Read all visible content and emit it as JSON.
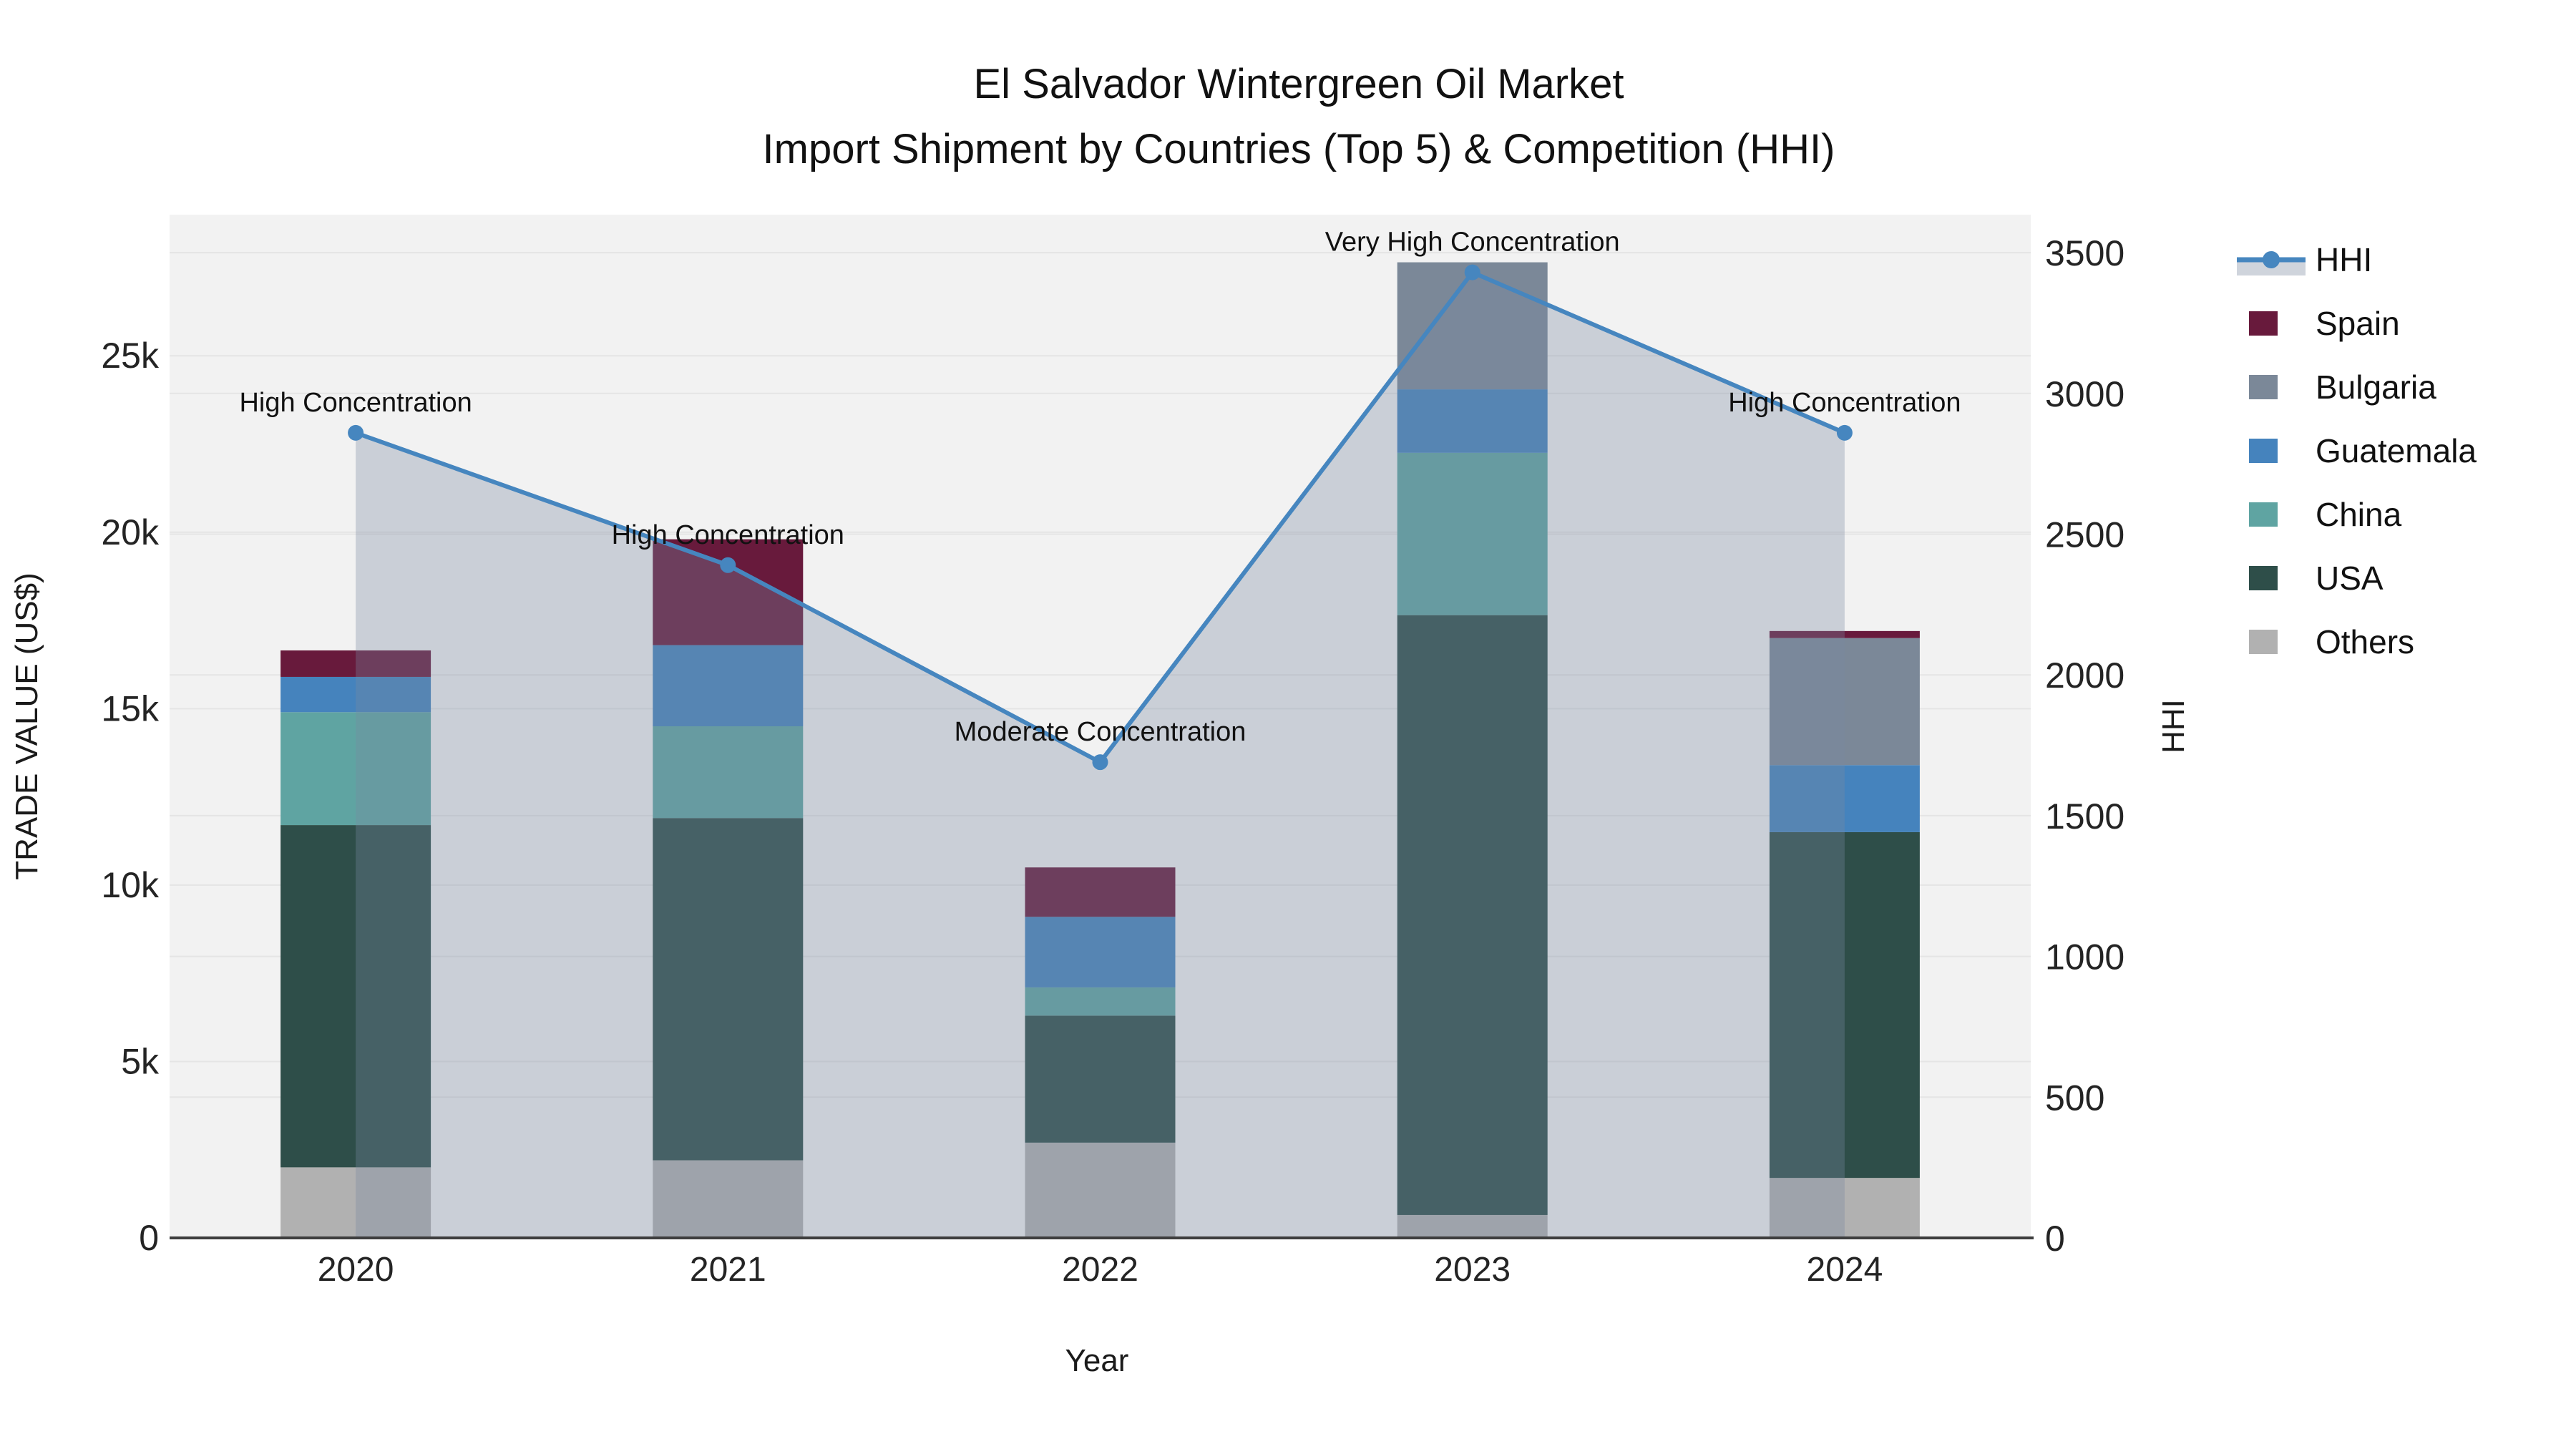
{
  "title": {
    "line1": "El Salvador Wintergreen Oil Market",
    "line2": "Import Shipment by Countries (Top 5) & Competition (HHI)"
  },
  "axes": {
    "x_title": "Year",
    "y_left_title": "TRADE VALUE (US$)",
    "y_right_title": "HHI",
    "y_left_tick_labels": [
      "0",
      "5k",
      "10k",
      "15k",
      "20k",
      "25k"
    ],
    "y_left_tick_values": [
      0,
      5000,
      10000,
      15000,
      20000,
      25000
    ],
    "y_right_tick_values": [
      0,
      500,
      1000,
      1500,
      2000,
      2500,
      3000,
      3500
    ]
  },
  "chart_data": {
    "type": "stacked-bar+line",
    "categories": [
      "2020",
      "2021",
      "2022",
      "2023",
      "2024"
    ],
    "xlabel": "Year",
    "ylabel_left": "TRADE VALUE (US$)",
    "ylabel_right": "HHI",
    "ylim_left": [
      0,
      29000
    ],
    "ylim_right": [
      0,
      3635
    ],
    "grid": true,
    "legend_position": "right",
    "series": [
      {
        "name": "Others",
        "color": "#b1b1b1",
        "values": [
          2000,
          2200,
          2700,
          650,
          1700
        ]
      },
      {
        "name": "USA",
        "color": "#2e4e49",
        "values": [
          9700,
          9700,
          3600,
          17000,
          9800
        ]
      },
      {
        "name": "China",
        "color": "#5fa4a2",
        "values": [
          3200,
          2600,
          800,
          4600,
          0
        ]
      },
      {
        "name": "Guatemala",
        "color": "#4583bd",
        "values": [
          1000,
          2300,
          2000,
          1800,
          1900
        ]
      },
      {
        "name": "Bulgaria",
        "color": "#7b8898",
        "values": [
          0,
          0,
          0,
          3600,
          3600
        ]
      },
      {
        "name": "Spain",
        "color": "#681a3c",
        "values": [
          750,
          3000,
          1400,
          0,
          200
        ]
      }
    ],
    "hhi_line": {
      "name": "HHI",
      "values": [
        2860,
        2390,
        1690,
        3430,
        2860
      ],
      "line_color": "#4686bf",
      "area_fill": "rgba(120,136,160,0.33)"
    },
    "annotations": [
      {
        "category": "2020",
        "text": "High Concentration"
      },
      {
        "category": "2021",
        "text": "High Concentration"
      },
      {
        "category": "2022",
        "text": "Moderate Concentration"
      },
      {
        "category": "2023",
        "text": "Very High Concentration"
      },
      {
        "category": "2024",
        "text": "High Concentration"
      }
    ]
  },
  "legend": {
    "items": [
      {
        "label": "HHI",
        "type": "line",
        "color": "#4686bf"
      },
      {
        "label": "Spain",
        "type": "swatch",
        "color": "#681a3c"
      },
      {
        "label": "Bulgaria",
        "type": "swatch",
        "color": "#7b8898"
      },
      {
        "label": "Guatemala",
        "type": "swatch",
        "color": "#4583bd"
      },
      {
        "label": "China",
        "type": "swatch",
        "color": "#5fa4a2"
      },
      {
        "label": "USA",
        "type": "swatch",
        "color": "#2e4e49"
      },
      {
        "label": "Others",
        "type": "swatch",
        "color": "#b1b1b1"
      }
    ]
  },
  "colors": {
    "plot_background": "#f2f2f2",
    "gridline": "#e5e5e5",
    "axis_line": "#3e3e3e",
    "hhi_line": "#4686bf",
    "hhi_area": "rgba(120,136,160,0.33)",
    "legend_area_band": "#cfd4dc"
  }
}
